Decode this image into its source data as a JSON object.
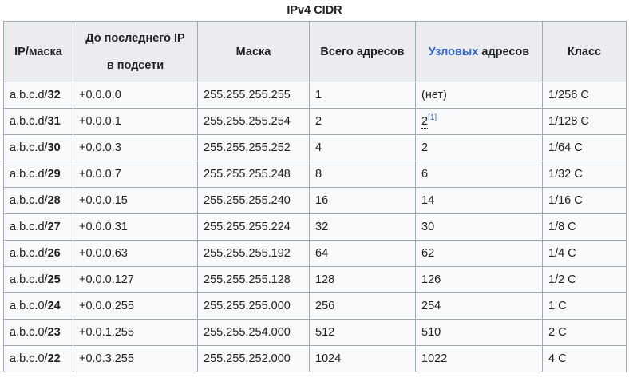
{
  "caption": "IPv4 CIDR",
  "headers": {
    "ip_mask": "IP/маска",
    "to_last_line1": "До последнего IP",
    "to_last_line2": "в подсети",
    "mask": "Маска",
    "total": "Всего адресов",
    "host_link": "Узловых",
    "host_rest": " адресов",
    "class": "Класс"
  },
  "rows": [
    {
      "ip": "a.b.c.d/",
      "prefix": "32",
      "last": "+0.0.0.0",
      "mask": "255.255.255.255",
      "total": "1",
      "hosts": "(нет)",
      "cls": "1/256 C"
    },
    {
      "ip": "a.b.c.d/",
      "prefix": "31",
      "last": "+0.0.0.1",
      "mask": "255.255.255.254",
      "total": "2",
      "hosts": "2",
      "hosts_ref": "[1]",
      "cls": "1/128 C"
    },
    {
      "ip": "a.b.c.d/",
      "prefix": "30",
      "last": "+0.0.0.3",
      "mask": "255.255.255.252",
      "total": "4",
      "hosts": "2",
      "cls": "1/64 C"
    },
    {
      "ip": "a.b.c.d/",
      "prefix": "29",
      "last": "+0.0.0.7",
      "mask": "255.255.255.248",
      "total": "8",
      "hosts": "6",
      "cls": "1/32 C"
    },
    {
      "ip": "a.b.c.d/",
      "prefix": "28",
      "last": "+0.0.0.15",
      "mask": "255.255.255.240",
      "total": "16",
      "hosts": "14",
      "cls": "1/16 C"
    },
    {
      "ip": "a.b.c.d/",
      "prefix": "27",
      "last": "+0.0.0.31",
      "mask": "255.255.255.224",
      "total": "32",
      "hosts": "30",
      "cls": "1/8 C"
    },
    {
      "ip": "a.b.c.d/",
      "prefix": "26",
      "last": "+0.0.0.63",
      "mask": "255.255.255.192",
      "total": "64",
      "hosts": "62",
      "cls": "1/4 C"
    },
    {
      "ip": "a.b.c.d/",
      "prefix": "25",
      "last": "+0.0.0.127",
      "mask": "255.255.255.128",
      "total": "128",
      "hosts": "126",
      "cls": "1/2 C"
    },
    {
      "ip": "a.b.c.0/",
      "prefix": "24",
      "last": "+0.0.0.255",
      "mask": "255.255.255.000",
      "total": "256",
      "hosts": "254",
      "cls": "1 C"
    },
    {
      "ip": "a.b.c.0/",
      "prefix": "23",
      "last": "+0.0.1.255",
      "mask": "255.255.254.000",
      "total": "512",
      "hosts": "510",
      "cls": "2 C"
    },
    {
      "ip": "a.b.c.0/",
      "prefix": "22",
      "last": "+0.0.3.255",
      "mask": "255.255.252.000",
      "total": "1024",
      "hosts": "1022",
      "cls": "4 C"
    }
  ]
}
